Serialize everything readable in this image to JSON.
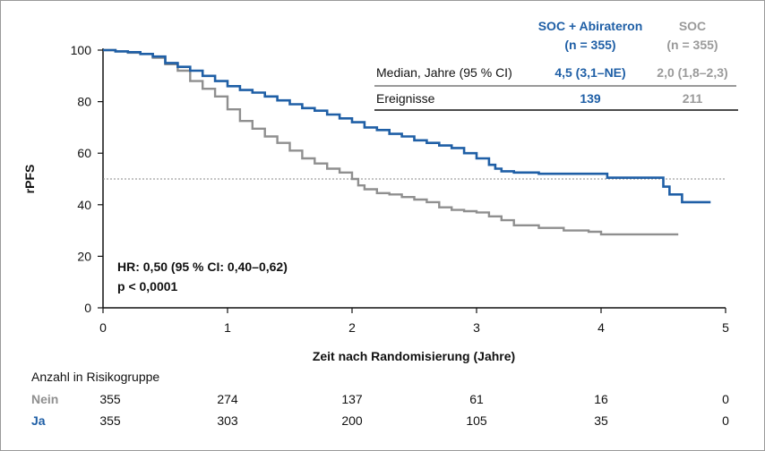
{
  "chart_data": {
    "type": "line",
    "title": "",
    "xlabel": "Zeit nach Randomisierung (Jahre)",
    "ylabel": "rPFS",
    "xlim": [
      0,
      5
    ],
    "ylim": [
      0,
      100
    ],
    "xticks": [
      "0",
      "1",
      "2",
      "3",
      "4",
      "5"
    ],
    "yticks": [
      "0",
      "20",
      "40",
      "60",
      "80",
      "100"
    ],
    "median_reference": 50,
    "series": [
      {
        "color": "#1f5fa6",
        "x": [
          0,
          0.1,
          0.2,
          0.3,
          0.4,
          0.5,
          0.6,
          0.7,
          0.8,
          0.9,
          1.0,
          1.1,
          1.2,
          1.3,
          1.4,
          1.5,
          1.6,
          1.7,
          1.8,
          1.9,
          2.0,
          2.1,
          2.2,
          2.3,
          2.4,
          2.5,
          2.6,
          2.7,
          2.8,
          2.9,
          3.0,
          3.1,
          3.15,
          3.2,
          3.3,
          3.5,
          3.8,
          4.05,
          4.3,
          4.45,
          4.5,
          4.55,
          4.65,
          4.88
        ],
        "y": [
          100,
          99.5,
          99.2,
          98.5,
          97.5,
          95,
          93.5,
          92,
          90,
          88,
          86,
          84.5,
          83.5,
          82,
          80.5,
          79,
          77.5,
          76.5,
          75,
          73.5,
          72,
          70,
          69,
          67.5,
          66.5,
          65,
          64,
          63,
          62,
          60,
          58,
          55.5,
          54,
          53,
          52.5,
          52,
          52,
          50.5,
          50.5,
          50.5,
          47,
          44,
          41,
          41
        ]
      },
      {
        "color": "#8f8f8f",
        "x": [
          0,
          0.1,
          0.2,
          0.3,
          0.4,
          0.5,
          0.6,
          0.7,
          0.8,
          0.9,
          1.0,
          1.1,
          1.2,
          1.3,
          1.4,
          1.5,
          1.6,
          1.7,
          1.8,
          1.9,
          2.0,
          2.05,
          2.1,
          2.2,
          2.3,
          2.4,
          2.5,
          2.6,
          2.7,
          2.8,
          2.9,
          3.0,
          3.1,
          3.2,
          3.3,
          3.5,
          3.7,
          3.9,
          4.0,
          4.3,
          4.62
        ],
        "y": [
          100,
          99.5,
          99,
          98.5,
          97,
          94.5,
          92,
          88,
          85,
          82,
          77,
          72.5,
          69.5,
          66.5,
          64,
          61,
          58,
          56,
          54,
          52.5,
          50,
          47.5,
          46,
          44.5,
          44,
          43,
          42,
          41,
          39,
          38,
          37.5,
          37,
          35.5,
          34,
          32,
          31,
          30,
          29.5,
          28.5,
          28.5,
          28.5
        ]
      }
    ],
    "legend_table": {
      "header_col1": "SOC + Abirateron",
      "header_col1_n": "(n = 355)",
      "header_col2": "SOC",
      "header_col2_n": "(n = 355)",
      "rows": [
        {
          "label": "Median, Jahre (95 % CI)",
          "col1": "4,5 (3,1–NE)",
          "col2": "2,0 (1,8–2,3)"
        },
        {
          "label": "Ereignisse",
          "col1": "139",
          "col2": "211"
        }
      ]
    },
    "annotations": [
      "HR: 0,50 (95 % CI: 0,40–0,62)",
      "p < 0,0001"
    ],
    "risk_table": {
      "title": "Anzahl in Risikogruppe",
      "rows": [
        {
          "label": "Nein",
          "color": "#8f8f8f",
          "values": [
            "355",
            "274",
            "137",
            "61",
            "16",
            "0"
          ]
        },
        {
          "label": "Ja",
          "color": "#1f5fa6",
          "values": [
            "355",
            "303",
            "200",
            "105",
            "35",
            "0"
          ]
        }
      ]
    }
  }
}
